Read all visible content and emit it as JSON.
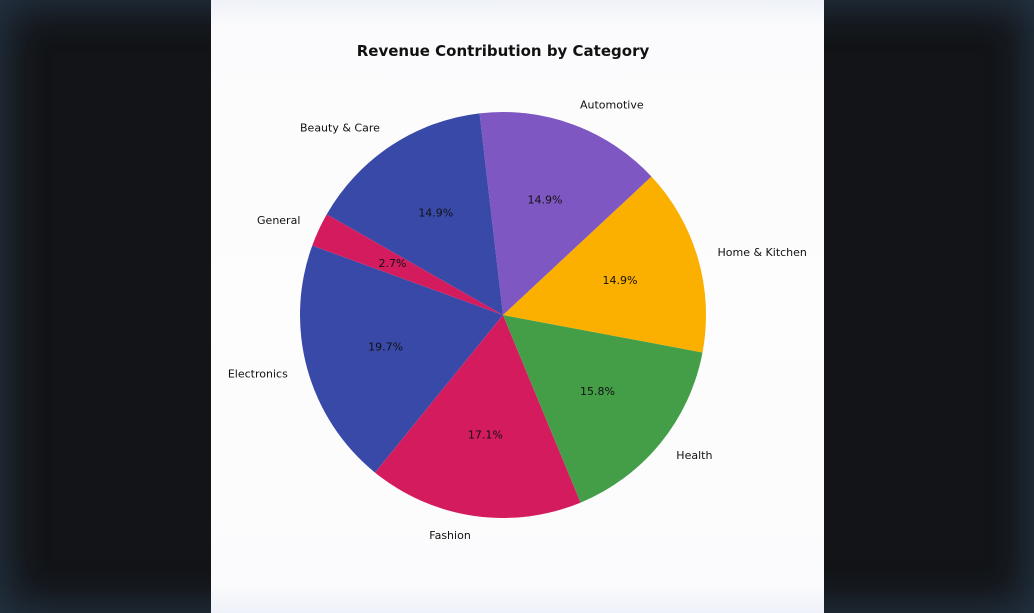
{
  "chart_data": {
    "type": "pie",
    "title": "Revenue Contribution by Category",
    "start_angle_deg": 160,
    "direction": "counterclockwise",
    "slices": [
      {
        "label": "Electronics",
        "value": 19.7,
        "pct_label": "19.7%",
        "color": "#3949a8"
      },
      {
        "label": "Fashion",
        "value": 17.1,
        "pct_label": "17.1%",
        "color": "#d41b5e"
      },
      {
        "label": "Health",
        "value": 15.8,
        "pct_label": "15.8%",
        "color": "#449e48"
      },
      {
        "label": "Home & Kitchen",
        "value": 14.9,
        "pct_label": "14.9%",
        "color": "#fbb000"
      },
      {
        "label": "Automotive",
        "value": 14.9,
        "pct_label": "14.9%",
        "color": "#7e57c2"
      },
      {
        "label": "Beauty & Care",
        "value": 14.9,
        "pct_label": "14.9%",
        "color": "#3949a8"
      },
      {
        "label": "General",
        "value": 2.7,
        "pct_label": "2.7%",
        "color": "#d41b5e"
      }
    ]
  }
}
